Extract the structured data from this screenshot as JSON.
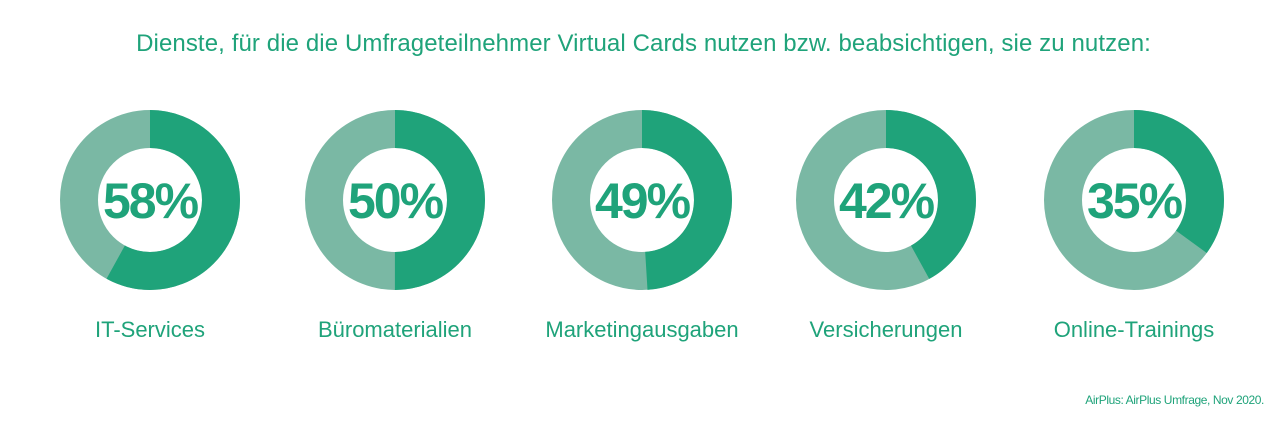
{
  "colors": {
    "accent": "#1fa37a",
    "remainder": "#7ab8a4"
  },
  "title": "Dienste, für die die Umfrageteilnehmer Virtual Cards nutzen bzw. beabsichtigen, sie zu nutzen:",
  "source": "AirPlus: AirPlus Umfrage, Nov 2020.",
  "chart_data": {
    "type": "pie",
    "variant": "donut",
    "title": "Dienste, für die die Umfrageteilnehmer Virtual Cards nutzen bzw. beabsichtigen, sie zu nutzen:",
    "categories": [
      "IT-Services",
      "Büromaterialien",
      "Marketingausgaben",
      "Versicherungen",
      "Online-Trainings"
    ],
    "values": [
      58,
      50,
      49,
      42,
      35
    ],
    "value_labels": [
      "58%",
      "50%",
      "49%",
      "42%",
      "35%"
    ],
    "unit": "%"
  }
}
